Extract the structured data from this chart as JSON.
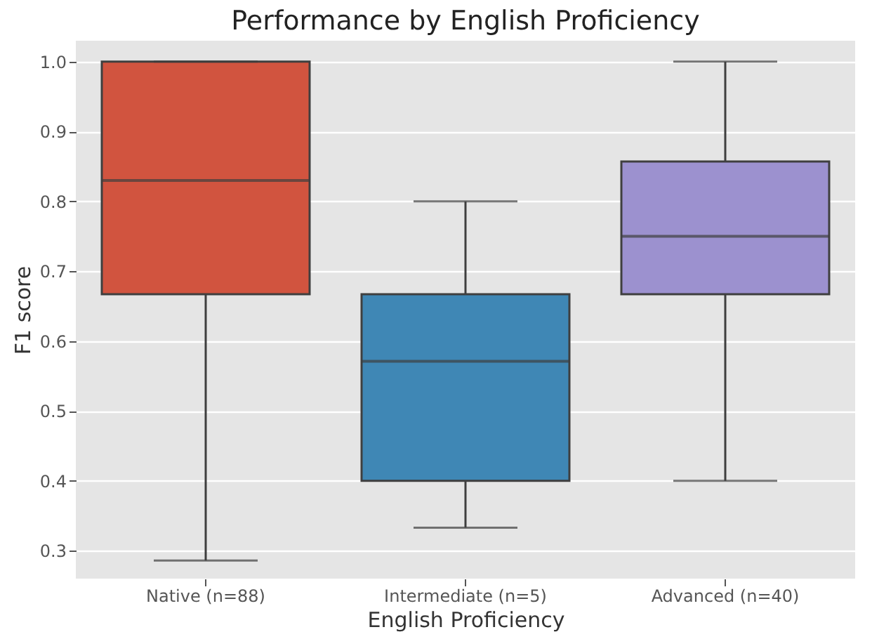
{
  "chart_data": {
    "type": "box",
    "title": "Performance by English Proficiency",
    "xlabel": "English Proficiency",
    "ylabel": "F1 score",
    "categories": [
      "Native (n=88)",
      "Intermediate (n=5)",
      "Advanced (n=40)"
    ],
    "boxes": [
      {
        "low": 0.286,
        "q1": 0.667,
        "median": 0.83,
        "q3": 1.0,
        "high": 1.0
      },
      {
        "low": 0.333,
        "q1": 0.4,
        "median": 0.571,
        "q3": 0.667,
        "high": 0.8
      },
      {
        "low": 0.4,
        "q1": 0.667,
        "median": 0.75,
        "q3": 0.857,
        "high": 1.0
      }
    ],
    "colors": [
      "#d1543f",
      "#3f87b5",
      "#9c91cf"
    ],
    "ylim": [
      0.26,
      1.03
    ],
    "yticks": [
      0.3,
      0.4,
      0.5,
      0.6,
      0.7,
      0.8,
      0.9,
      {
        "value": 1,
        "label": "1.0"
      }
    ],
    "grid": "y"
  }
}
